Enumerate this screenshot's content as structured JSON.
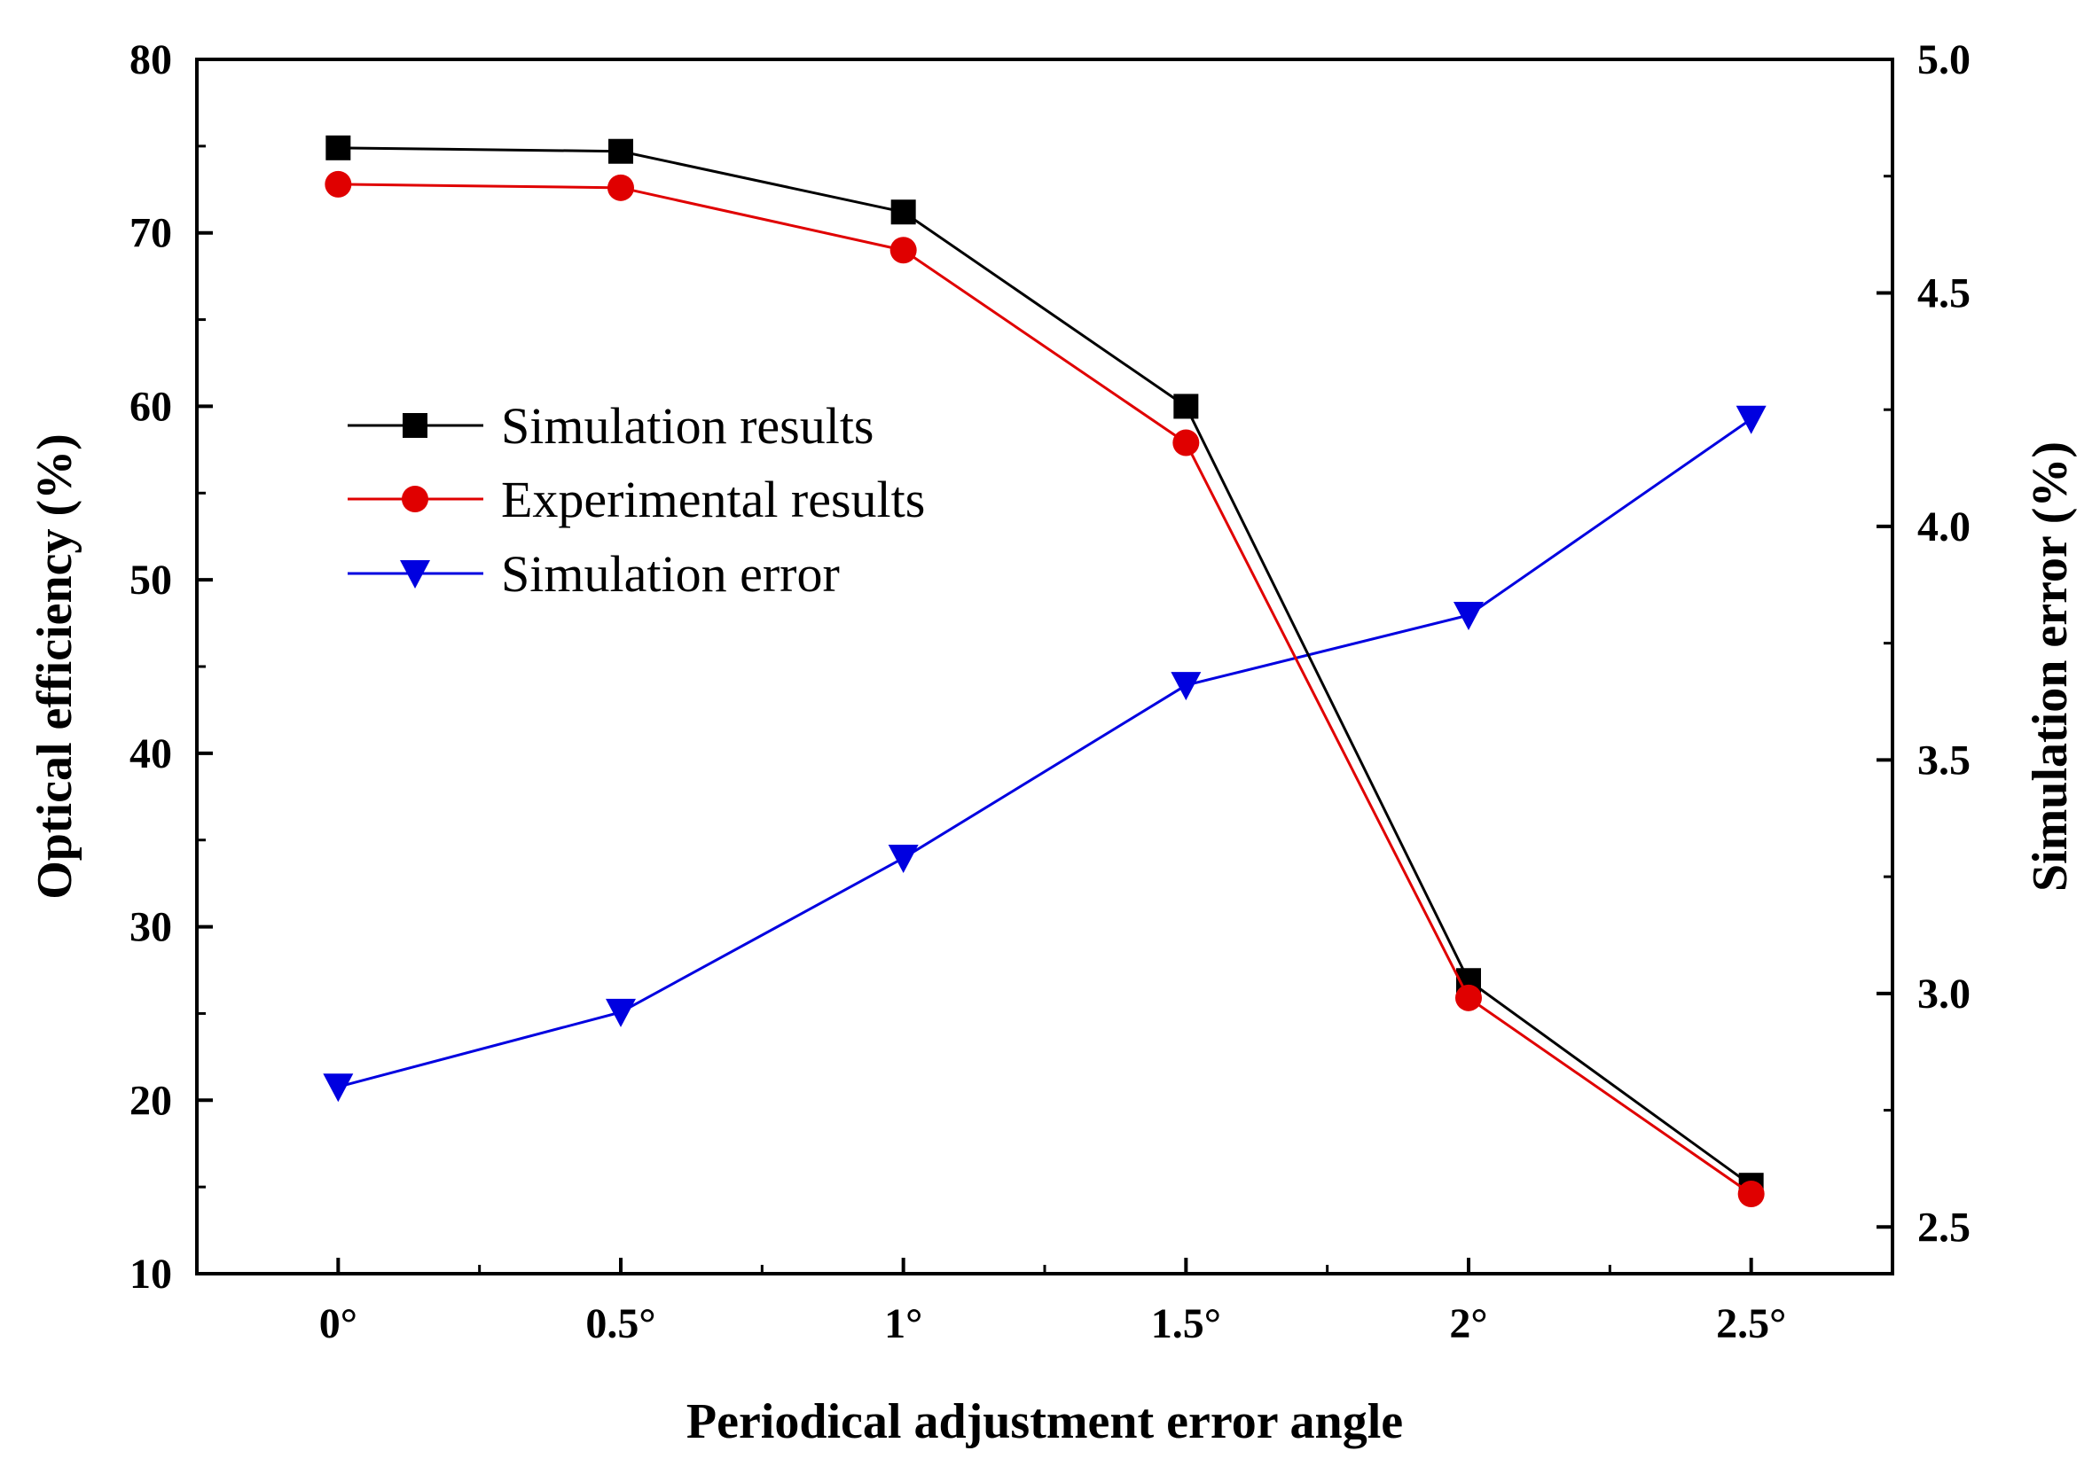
{
  "chart_data": {
    "type": "line",
    "title": "",
    "xlabel": "Periodical adjustment error angle",
    "ylabel": "Optical efficiency (%)",
    "y2label": "Simulation error (%)",
    "categories": [
      "0°",
      "0.5°",
      "1°",
      "1.5°",
      "2°",
      "2.5°"
    ],
    "x": [
      0,
      0.5,
      1,
      1.5,
      2,
      2.5
    ],
    "xlim": [
      -0.25,
      2.75
    ],
    "ylim": [
      10,
      80
    ],
    "y2lim": [
      2.4,
      5.0
    ],
    "yticks": [
      10,
      20,
      30,
      40,
      50,
      60,
      70,
      80
    ],
    "y2ticks": [
      "2.5",
      "3.0",
      "3.5",
      "4.0",
      "4.5",
      "5.0"
    ],
    "legend_position": "center-left",
    "grid": false,
    "series": [
      {
        "name": "Simulation results",
        "axis": "left",
        "color": "#000000",
        "marker": "square",
        "values": [
          74.9,
          74.7,
          71.2,
          60.0,
          26.9,
          15.1
        ]
      },
      {
        "name": "Experimental results",
        "axis": "left",
        "color": "#e00000",
        "marker": "circle",
        "values": [
          72.8,
          72.6,
          69.0,
          57.9,
          25.9,
          14.6
        ]
      },
      {
        "name": "Simulation error",
        "axis": "right",
        "color": "#0000e0",
        "marker": "triangle-down",
        "values": [
          2.8,
          2.96,
          3.29,
          3.66,
          3.81,
          4.23
        ]
      }
    ]
  }
}
